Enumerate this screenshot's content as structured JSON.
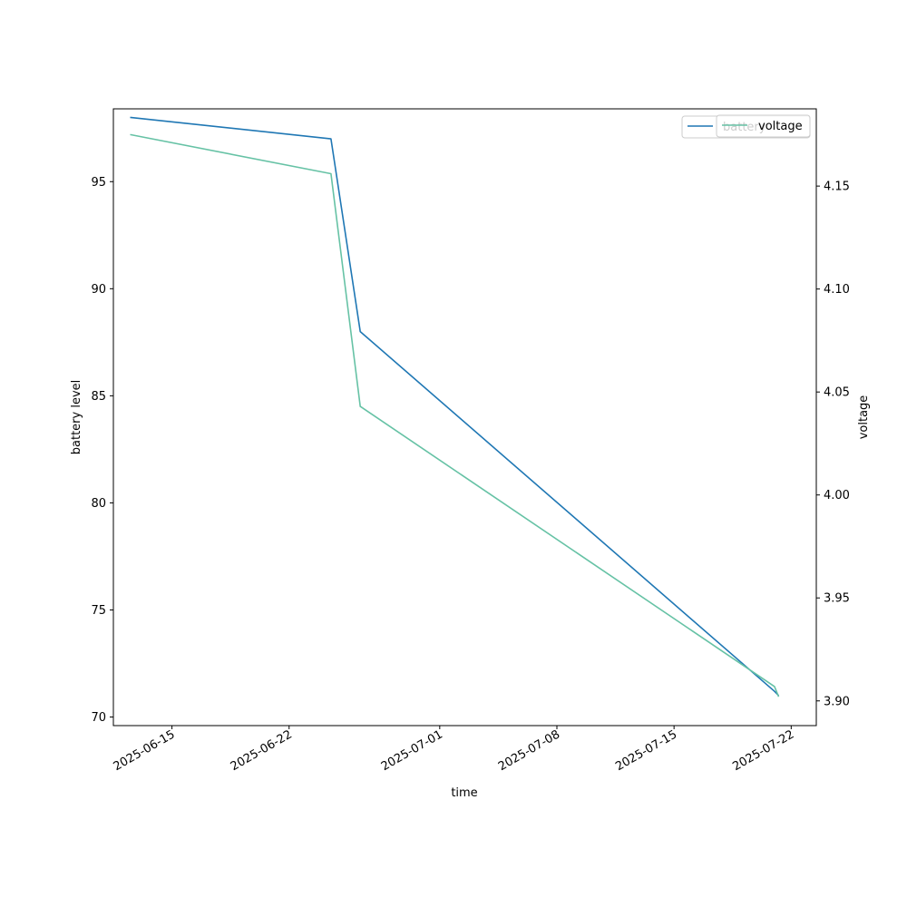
{
  "chart_data": {
    "type": "line",
    "xlabel": "time",
    "ylabel_left": "battery level",
    "ylabel_right": "voltage",
    "x_ticks": [
      "2025-06-15",
      "2025-06-22",
      "2025-07-01",
      "2025-07-08",
      "2025-07-15",
      "2025-07-22"
    ],
    "y_left_ticks": [
      "70",
      "75",
      "80",
      "85",
      "90",
      "95"
    ],
    "y_right_ticks": [
      "3.90",
      "3.95",
      "4.00",
      "4.05",
      "4.10",
      "4.15"
    ],
    "x_range": [
      "2025-06-11T12:00",
      "2025-07-23T12:00"
    ],
    "y_left_range": [
      69.6,
      98.4
    ],
    "y_right_range": [
      3.888,
      4.1875
    ],
    "series": [
      {
        "name": "battery",
        "axis": "left",
        "color": "#1f77b4",
        "x": [
          "2025-06-12T12:00",
          "2025-06-24T12:00",
          "2025-06-26T06:00",
          "2025-07-21T00:00",
          "2025-07-21T06:00"
        ],
        "y": [
          98.0,
          97.0,
          88.0,
          71.2,
          71.0
        ]
      },
      {
        "name": "voltage",
        "axis": "right",
        "color": "#66c2a5",
        "x": [
          "2025-06-12T12:00",
          "2025-06-24T12:00",
          "2025-06-26T06:00",
          "2025-07-21T00:00",
          "2025-07-21T06:00"
        ],
        "y": [
          4.175,
          4.156,
          4.043,
          3.907,
          3.902
        ]
      }
    ],
    "legends": [
      {
        "entries": [
          "battery"
        ],
        "placement": "top-right"
      },
      {
        "entries": [
          "voltage"
        ],
        "placement": "top-right"
      }
    ],
    "grid": false
  }
}
